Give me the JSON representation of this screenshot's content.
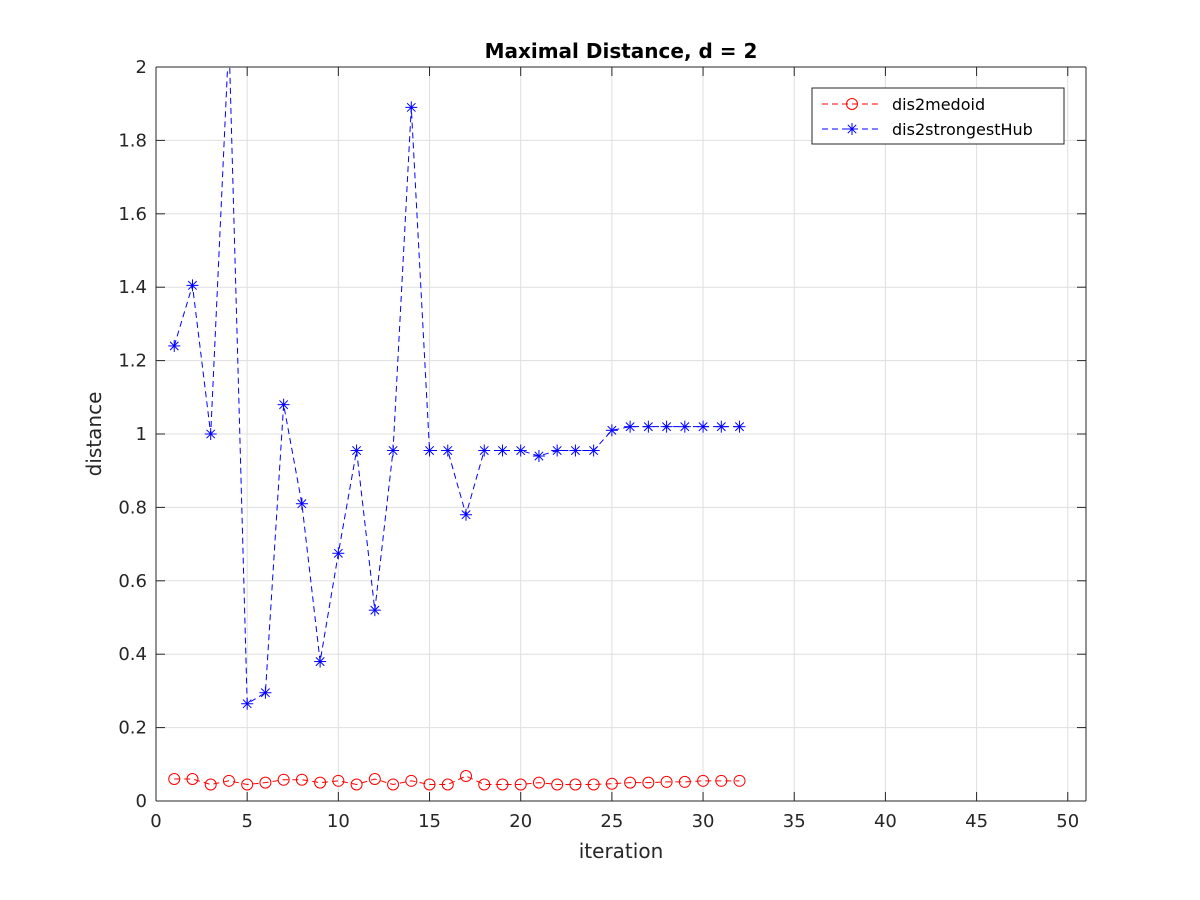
{
  "chart_data": {
    "type": "line",
    "title": "Maximal Distance, d = 2",
    "xlabel": "iteration",
    "ylabel": "distance",
    "xlim": [
      0,
      51
    ],
    "ylim": [
      0,
      2
    ],
    "xticks": [
      0,
      5,
      10,
      15,
      20,
      25,
      30,
      35,
      40,
      45,
      50
    ],
    "yticks": [
      0,
      0.2,
      0.4,
      0.6,
      0.8,
      1,
      1.2,
      1.4,
      1.6,
      1.8,
      2
    ],
    "xtick_labels": [
      "0",
      "5",
      "10",
      "15",
      "20",
      "25",
      "30",
      "35",
      "40",
      "45",
      "50"
    ],
    "ytick_labels": [
      "0",
      "0.2",
      "0.4",
      "0.6",
      "0.8",
      "1",
      "1.2",
      "1.4",
      "1.6",
      "1.8",
      "2"
    ],
    "grid": true,
    "legend_position": "top-right",
    "series": [
      {
        "name": "dis2medoid",
        "color": "#ff0000",
        "marker": "circle",
        "line_style": "dashed",
        "x": [
          1,
          2,
          3,
          4,
          5,
          6,
          7,
          8,
          9,
          10,
          11,
          12,
          13,
          14,
          15,
          16,
          17,
          18,
          19,
          20,
          21,
          22,
          23,
          24,
          25,
          26,
          27,
          28,
          29,
          30,
          31,
          32
        ],
        "values": [
          0.06,
          0.06,
          0.045,
          0.055,
          0.045,
          0.05,
          0.058,
          0.058,
          0.05,
          0.055,
          0.045,
          0.06,
          0.045,
          0.055,
          0.045,
          0.045,
          0.068,
          0.045,
          0.045,
          0.045,
          0.05,
          0.045,
          0.045,
          0.045,
          0.047,
          0.05,
          0.05,
          0.052,
          0.052,
          0.055,
          0.055,
          0.055
        ]
      },
      {
        "name": "dis2strongestHub",
        "color": "#0000ff",
        "marker": "star",
        "line_style": "dashed",
        "x": [
          1,
          2,
          3,
          4,
          5,
          6,
          7,
          8,
          9,
          10,
          11,
          12,
          13,
          14,
          15,
          16,
          17,
          18,
          19,
          20,
          21,
          22,
          23,
          24,
          25,
          26,
          27,
          28,
          29,
          30,
          31,
          32
        ],
        "values": [
          1.24,
          1.405,
          1.0,
          2.08,
          0.265,
          0.295,
          1.08,
          0.81,
          0.38,
          0.675,
          0.955,
          0.52,
          0.955,
          1.89,
          0.955,
          0.955,
          0.78,
          0.955,
          0.955,
          0.955,
          0.94,
          0.955,
          0.955,
          0.955,
          1.01,
          1.02,
          1.02,
          1.02,
          1.02,
          1.02,
          1.02,
          1.02
        ]
      }
    ]
  }
}
